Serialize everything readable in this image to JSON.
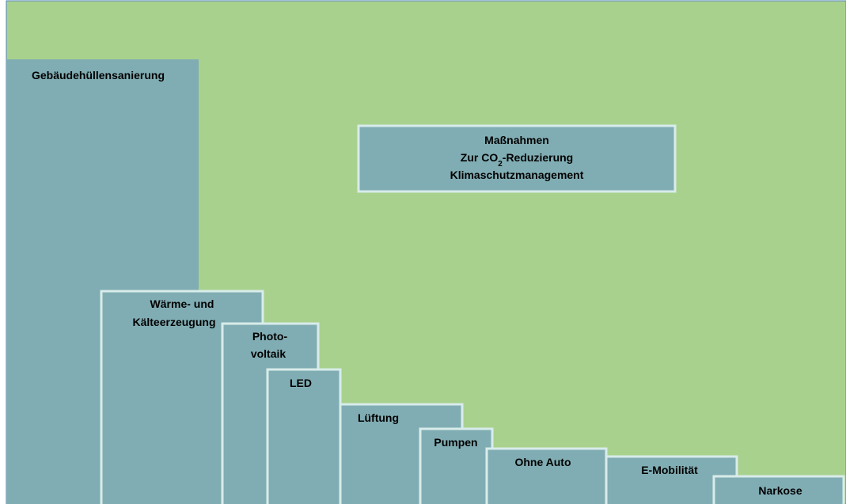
{
  "title_box": {
    "line1": "Maßnahmen",
    "line2": {
      "before": "Zur CO",
      "sub": "2",
      "after": "-Reduzierung"
    },
    "line3": "Klimaschutzmanagement"
  },
  "boxes": [
    {
      "lines": [
        "Gebäudehüllensanierung"
      ]
    },
    {
      "lines": [
        "Wärme- und",
        "Kälteerzeugung"
      ]
    },
    {
      "lines": [
        "Photo-",
        "voltaik"
      ]
    },
    {
      "lines": [
        "LED"
      ]
    },
    {
      "lines": [
        "Lüftung"
      ]
    },
    {
      "lines": [
        "Pumpen"
      ]
    },
    {
      "lines": [
        "Ohne Auto"
      ]
    },
    {
      "lines": [
        "E-Mobilität"
      ]
    },
    {
      "lines": [
        "Narkose"
      ]
    }
  ]
}
